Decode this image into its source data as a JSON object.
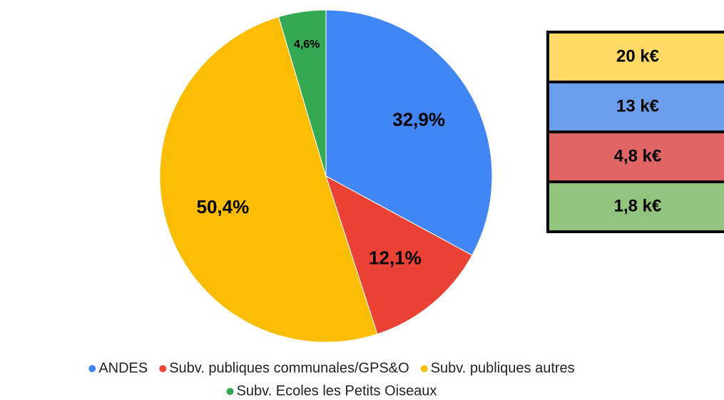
{
  "chart_data": {
    "type": "pie",
    "categories": [
      "ANDES",
      "Subv. publiques communales/GPS&O",
      "Subv. publiques autres",
      "Subv. Ecoles les Petits Oiseaux"
    ],
    "values": [
      32.9,
      12.1,
      50.4,
      4.6
    ],
    "value_labels": [
      "32,9%",
      "12,1%",
      "50,4%",
      "4,6%"
    ],
    "colors": [
      "#4285f4",
      "#ea4335",
      "#fbbc04",
      "#34a853"
    ],
    "legend": "bottom"
  },
  "summary": [
    {
      "label": "20 k€",
      "color": "#ffd966"
    },
    {
      "label": "13 k€",
      "color": "#6d9eeb"
    },
    {
      "label": "4,8 k€",
      "color": "#e06666"
    },
    {
      "label": "1,8 k€",
      "color": "#93c47d"
    }
  ]
}
